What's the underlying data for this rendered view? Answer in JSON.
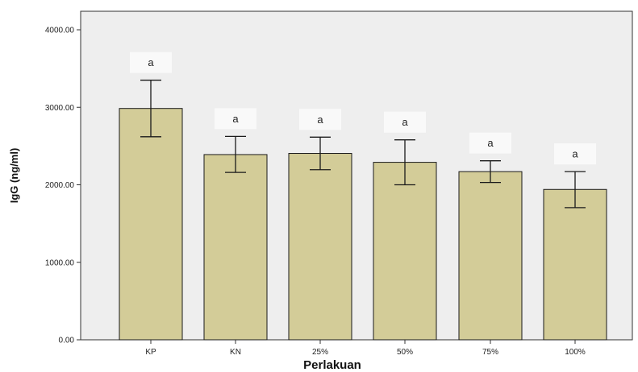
{
  "chart_data": {
    "type": "bar",
    "categories": [
      "KP",
      "KN",
      "25%",
      "50%",
      "75%",
      "100%"
    ],
    "values": [
      2985,
      2390,
      2405,
      2290,
      2170,
      1940
    ],
    "error_low": [
      2620,
      2160,
      2195,
      2000,
      2030,
      1705
    ],
    "error_high": [
      3350,
      2625,
      2615,
      2580,
      2310,
      2170
    ],
    "significance_labels": [
      "a",
      "a",
      "a",
      "a",
      "a",
      "a"
    ],
    "xlabel": "Perlakuan",
    "ylabel": "IgG (ng/ml)",
    "ylim": [
      0,
      4000
    ],
    "yticks": [
      "0.00",
      "1000.00",
      "2000.00",
      "3000.00",
      "4000.00"
    ],
    "grid": false,
    "colors": {
      "plot_background": "#eeeeee",
      "bar_fill": "#d3cc98",
      "bar_stroke": "#1a1a1a",
      "error_bar": "#1a1a1a",
      "label_box": "#f9f9f9"
    }
  }
}
